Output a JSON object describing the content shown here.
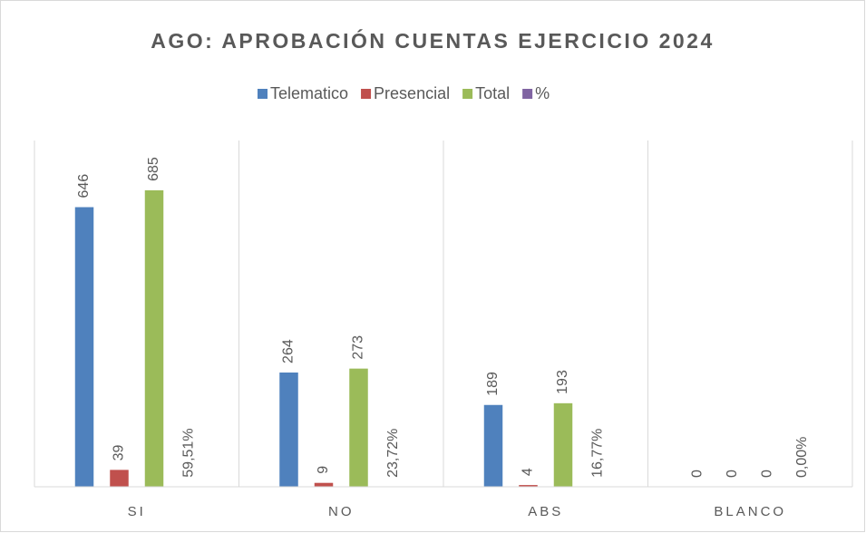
{
  "chart_data": {
    "type": "bar",
    "title": "AGO: APROBACIÓN CUENTAS EJERCICIO 2024",
    "categories": [
      "SI",
      "NO",
      "ABS",
      "BLANCO"
    ],
    "series": [
      {
        "name": "Telematico",
        "color": "#4f81bd",
        "values": [
          646,
          264,
          189,
          0
        ]
      },
      {
        "name": "Presencial",
        "color": "#c0504d",
        "values": [
          39,
          9,
          4,
          0
        ]
      },
      {
        "name": "Total",
        "color": "#9bbb59",
        "values": [
          685,
          273,
          193,
          0
        ]
      },
      {
        "name": "%",
        "color": "#8064a2",
        "values": [
          0.5951,
          0.2372,
          0.1677,
          0
        ],
        "value_labels": [
          "59,51%",
          "23,72%",
          "16,77%",
          "0,00%"
        ]
      }
    ],
    "ylim": [
      0,
      800
    ],
    "legend": "top"
  }
}
